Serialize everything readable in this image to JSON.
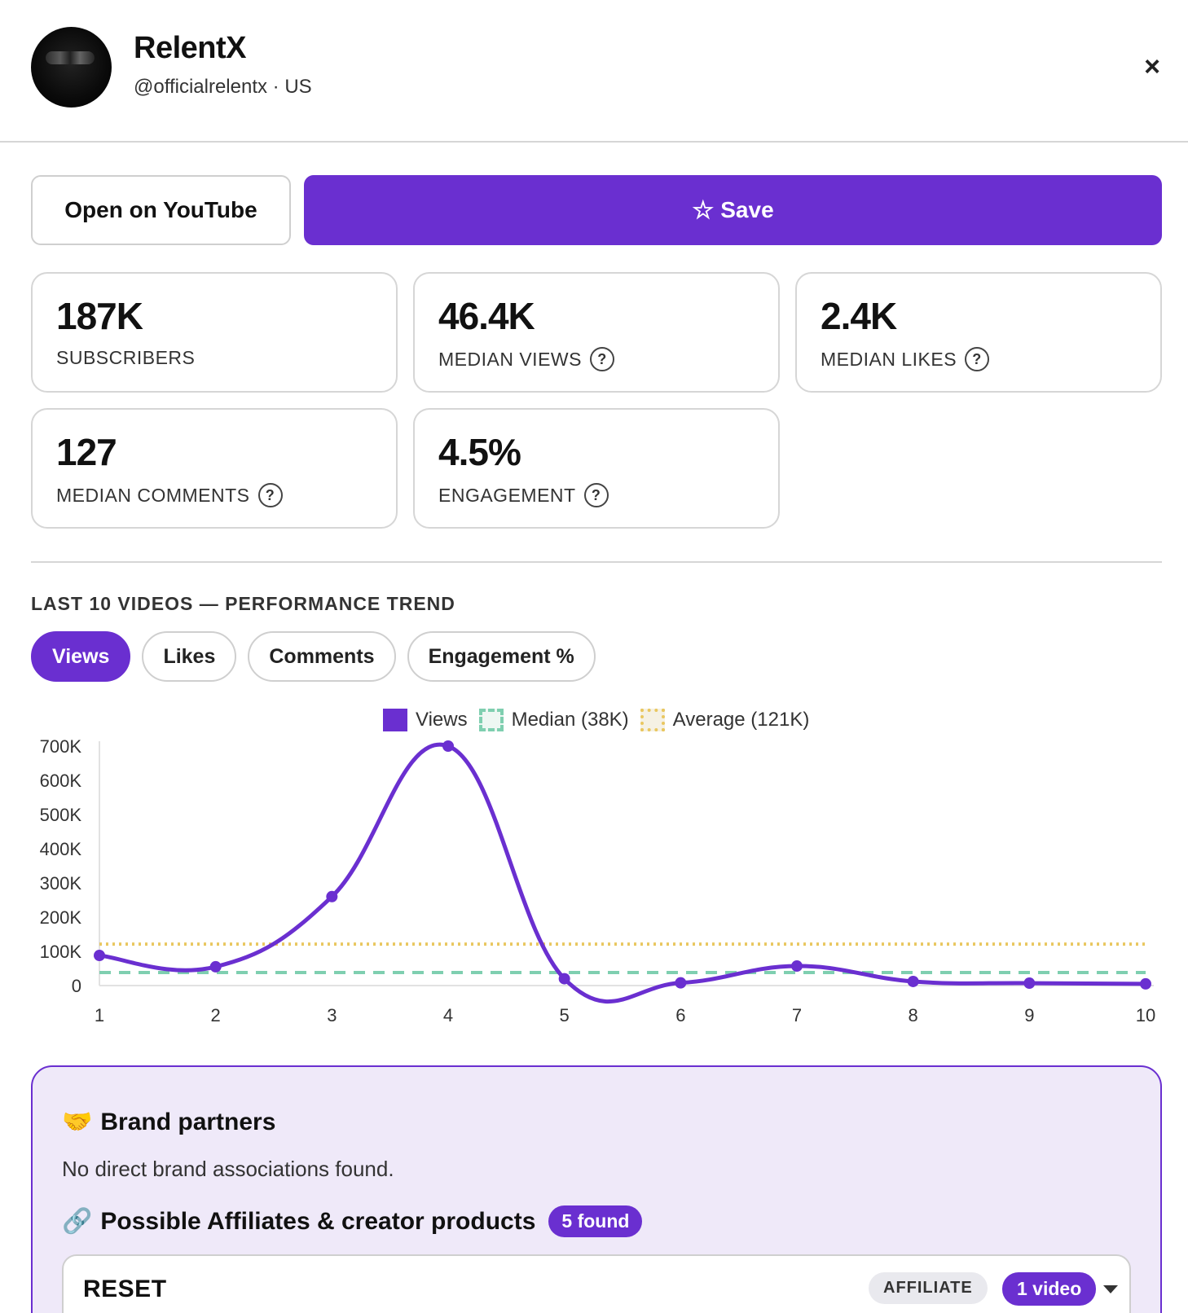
{
  "header": {
    "name": "RelentX",
    "handle": "@officialrelentx · US",
    "close": "×"
  },
  "actions": {
    "open_label": "Open on YouTube",
    "save_icon": "☆",
    "save_label": "Save"
  },
  "stats": [
    {
      "value": "187K",
      "label": "SUBSCRIBERS",
      "help": false
    },
    {
      "value": "46.4K",
      "label": "MEDIAN VIEWS",
      "help": true
    },
    {
      "value": "2.4K",
      "label": "MEDIAN LIKES",
      "help": true
    },
    {
      "value": "127",
      "label": "MEDIAN COMMENTS",
      "help": true
    },
    {
      "value": "4.5%",
      "label": "ENGAGEMENT",
      "help": true
    }
  ],
  "help_glyph": "?",
  "trend": {
    "title": "LAST 10 VIDEOS — PERFORMANCE TREND",
    "tabs": [
      "Views",
      "Likes",
      "Comments",
      "Engagement %"
    ],
    "active_tab": "Views"
  },
  "chart_data": {
    "type": "line",
    "x": [
      1,
      2,
      3,
      4,
      5,
      6,
      7,
      8,
      9,
      10
    ],
    "series": [
      {
        "name": "Views",
        "values": [
          88000,
          55000,
          260000,
          700000,
          20000,
          8000,
          57000,
          12000,
          7000,
          5000
        ]
      }
    ],
    "reference_lines": [
      {
        "name": "Median (38K)",
        "value": 38000,
        "style": "dashed"
      },
      {
        "name": "Average (121K)",
        "value": 121000,
        "style": "dotted"
      }
    ],
    "y_ticks": [
      "0",
      "100K",
      "200K",
      "300K",
      "400K",
      "500K",
      "600K",
      "700K"
    ],
    "ylim": [
      0,
      700000
    ],
    "legend_position": "top-center",
    "colors": {
      "views": "#6a2fd0",
      "median": "#7fcfb0",
      "average": "#e9c760"
    }
  },
  "brand_partners": {
    "icon": "🤝",
    "title": "Brand partners",
    "text": "No direct brand associations found.",
    "affiliates_icon": "🔗",
    "affiliates_title": "Possible Affiliates & creator products",
    "found_badge": "5 found",
    "first_item": {
      "name": "RESET",
      "type": "AFFILIATE",
      "videos": "1 video"
    }
  },
  "colors": {
    "accent": "#6a2fd0",
    "panel_bg": "#efe9f9"
  }
}
